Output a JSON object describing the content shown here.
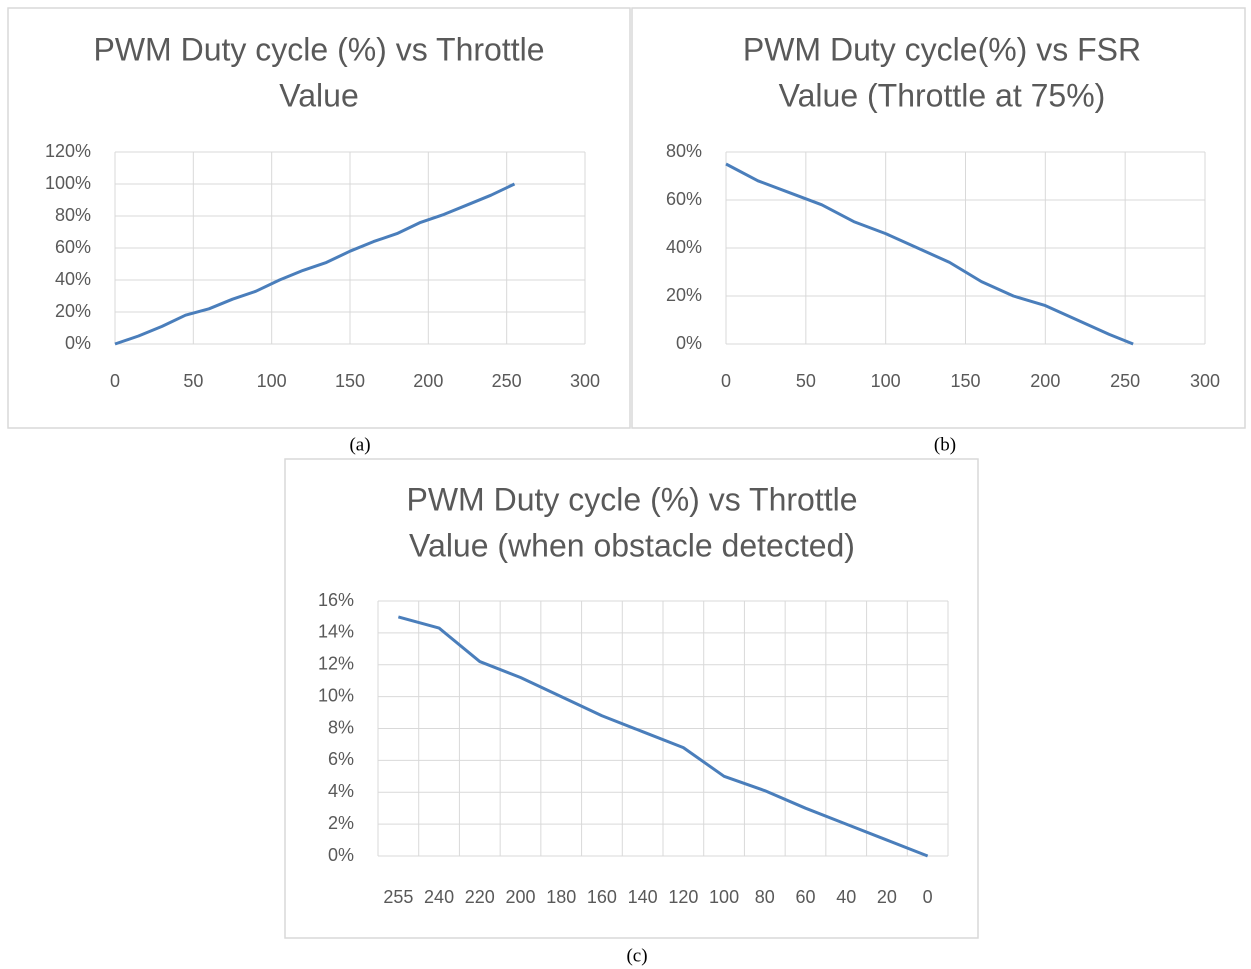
{
  "chart_data": [
    {
      "type": "line",
      "title": [
        "PWM Duty cycle (%) vs Throttle",
        "Value"
      ],
      "caption": "(a)",
      "x": [
        0,
        15,
        30,
        45,
        60,
        75,
        90,
        105,
        120,
        135,
        150,
        165,
        180,
        195,
        210,
        225,
        240,
        255
      ],
      "values": [
        0,
        5,
        11,
        18,
        22,
        28,
        33,
        40,
        46,
        51,
        58,
        64,
        69,
        76,
        81,
        87,
        93,
        100
      ],
      "color": "#4a7ebb",
      "xlim": [
        0,
        300
      ],
      "xticks": [
        0,
        50,
        100,
        150,
        200,
        250,
        300
      ],
      "ylim": [
        0,
        120
      ],
      "yticks": [
        {
          "value": 0,
          "label": "0%"
        },
        {
          "value": 20,
          "label": "20%"
        },
        {
          "value": 40,
          "label": "40%"
        },
        {
          "value": 60,
          "label": "60%"
        },
        {
          "value": 80,
          "label": "80%"
        },
        {
          "value": 100,
          "label": "100%"
        },
        {
          "value": 120,
          "label": "120%"
        }
      ],
      "grid": true
    },
    {
      "type": "line",
      "title": [
        "PWM Duty cycle(%) vs FSR",
        "Value (Throttle at 75%)"
      ],
      "caption": "(b)",
      "x": [
        0,
        20,
        40,
        60,
        80,
        100,
        120,
        140,
        160,
        180,
        200,
        220,
        240,
        255
      ],
      "values": [
        75,
        68,
        63,
        58,
        51,
        46,
        40,
        34,
        26,
        20,
        16,
        10,
        4,
        0
      ],
      "color": "#4a7ebb",
      "xlim": [
        0,
        300
      ],
      "xticks": [
        0,
        50,
        100,
        150,
        200,
        250,
        300
      ],
      "ylim": [
        0,
        80
      ],
      "yticks": [
        {
          "value": 0,
          "label": "0%"
        },
        {
          "value": 20,
          "label": "20%"
        },
        {
          "value": 40,
          "label": "40%"
        },
        {
          "value": 60,
          "label": "60%"
        },
        {
          "value": 80,
          "label": "80%"
        }
      ],
      "grid": true
    },
    {
      "type": "line",
      "title": [
        "PWM Duty cycle (%) vs Throttle",
        "Value (when obstacle detected)"
      ],
      "caption": "(c)",
      "categories": [
        "255",
        "240",
        "220",
        "200",
        "180",
        "160",
        "140",
        "120",
        "100",
        "80",
        "60",
        "40",
        "20",
        "0"
      ],
      "values": [
        15,
        14.3,
        12.2,
        11.2,
        10,
        8.8,
        7.8,
        6.8,
        5,
        4.1,
        3,
        2,
        1,
        0
      ],
      "color": "#4a7ebb",
      "ylim": [
        0,
        16
      ],
      "yticks": [
        {
          "value": 0,
          "label": "0%"
        },
        {
          "value": 2,
          "label": "2%"
        },
        {
          "value": 4,
          "label": "4%"
        },
        {
          "value": 6,
          "label": "6%"
        },
        {
          "value": 8,
          "label": "8%"
        },
        {
          "value": 10,
          "label": "10%"
        },
        {
          "value": 12,
          "label": "12%"
        },
        {
          "value": 14,
          "label": "14%"
        },
        {
          "value": 16,
          "label": "16%"
        }
      ],
      "grid": true
    }
  ]
}
